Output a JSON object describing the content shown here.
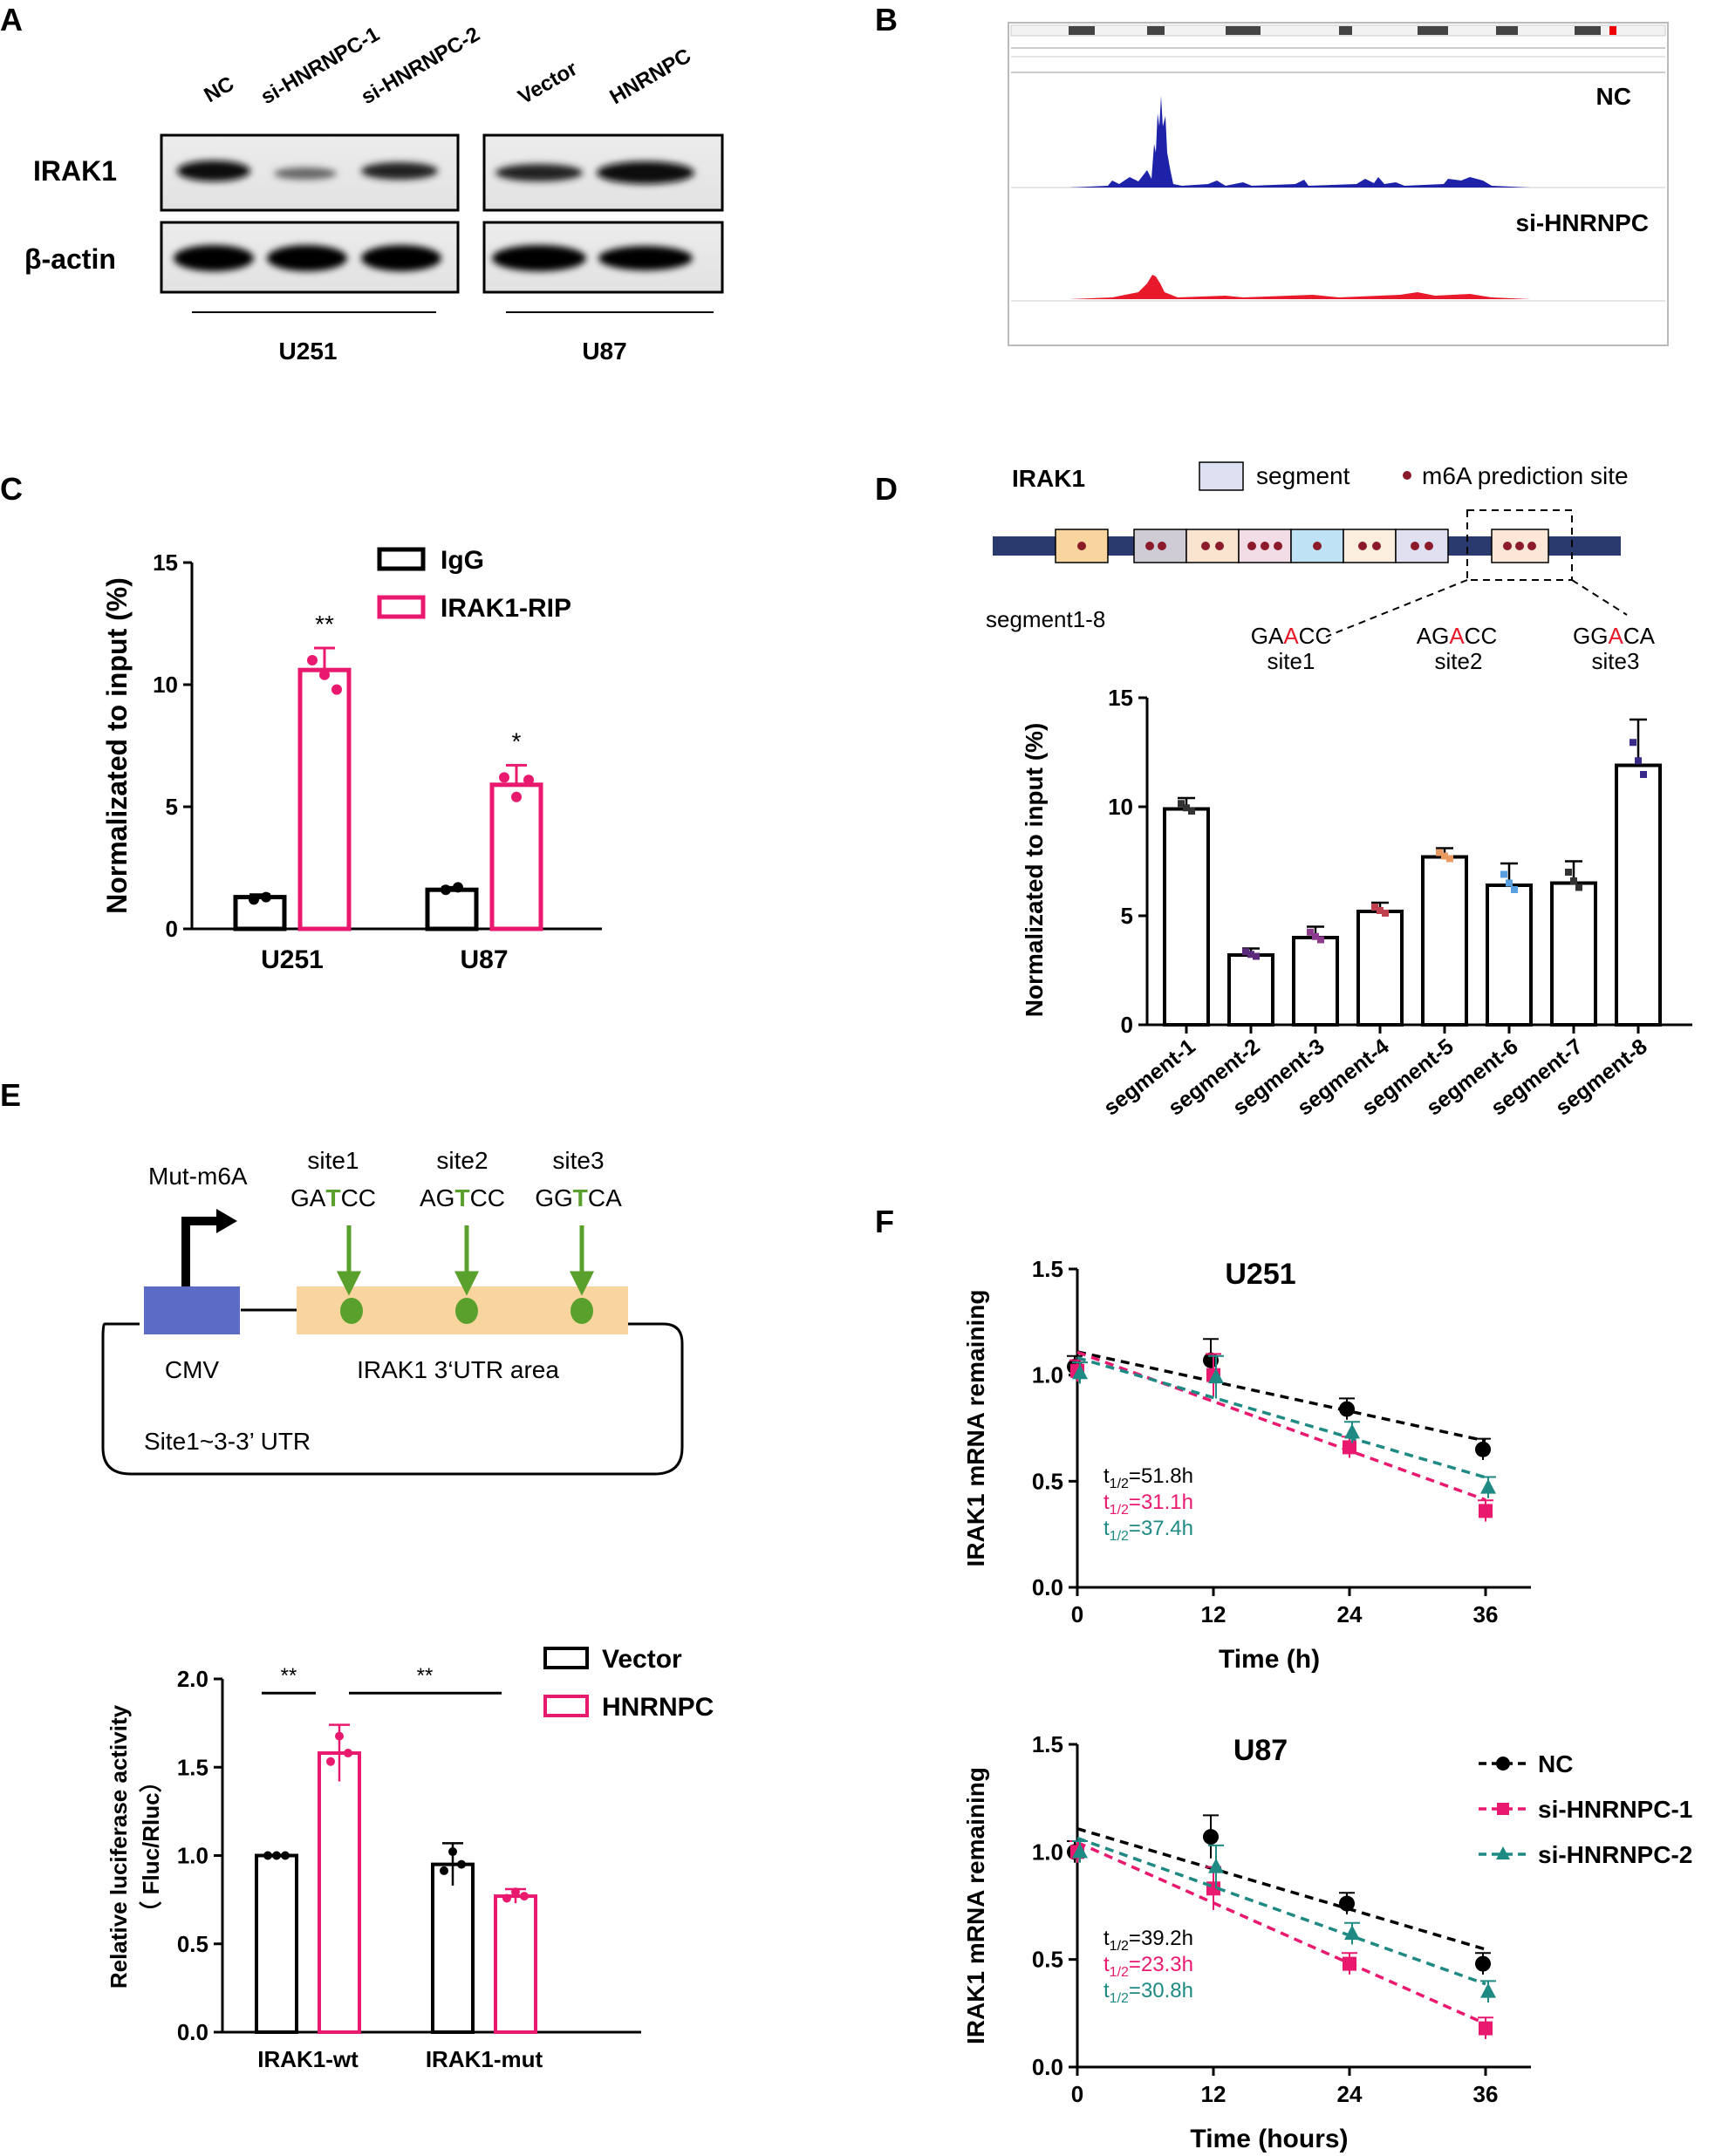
{
  "panels": {
    "A": "A",
    "B": "B",
    "C": "C",
    "D": "D",
    "E": "E",
    "F": "F"
  },
  "panelA": {
    "lanes_left": [
      "NC",
      "si-HNRNPC-1",
      "si-HNRNPC-2"
    ],
    "lanes_right": [
      "Vector",
      "HNRNPC"
    ],
    "rows": [
      "IRAK1",
      "β-actin"
    ],
    "cells": [
      "U251",
      "U87"
    ]
  },
  "panelB": {
    "tracks": [
      "NC",
      "si-HNRNPC"
    ]
  },
  "panelD_schematic": {
    "gene": "IRAK1",
    "legend_segment": "segment",
    "legend_site": "m6A prediction site",
    "segments_label": "segment1-8",
    "sites": [
      {
        "pre": "GA",
        "mid": "A",
        "post": "CC",
        "name": "site1"
      },
      {
        "pre": "AG",
        "mid": "A",
        "post": "CC",
        "name": "site2"
      },
      {
        "pre": "GG",
        "mid": "A",
        "post": "CA",
        "name": "site3"
      }
    ]
  },
  "panelE_schematic": {
    "mut_label": "Mut-m6A",
    "sites": [
      {
        "name": "site1",
        "pre": "GA",
        "mid": "T",
        "post": "CC"
      },
      {
        "name": "site2",
        "pre": "AG",
        "mid": "T",
        "post": "CC"
      },
      {
        "name": "site3",
        "pre": "GG",
        "mid": "T",
        "post": "CA"
      }
    ],
    "promoter": "CMV",
    "utr": "IRAK1 3‘UTR area",
    "construct": "Site1~3-3’ UTR"
  },
  "colors": {
    "pink": "#e8196e",
    "teal": "#1e8a83",
    "black": "#000000",
    "blue_track": "#1d22a8",
    "red_track": "#e8192a",
    "green": "#5aa02c",
    "utr_fill": "#f8d49e",
    "cmv_fill": "#5c6cc4"
  },
  "chart_data": [
    {
      "id": "C",
      "type": "bar",
      "categories": [
        "U251",
        "U87"
      ],
      "series": [
        {
          "name": "IgG",
          "values": [
            1.3,
            1.6
          ],
          "color": "#000000"
        },
        {
          "name": "IRAK1-RIP",
          "values": [
            10.6,
            5.9
          ],
          "color": "#e8196e"
        }
      ],
      "errors": [
        [
          0.1,
          0.1
        ],
        [
          0.9,
          0.8
        ]
      ],
      "points": [
        [
          [
            1.2,
            1.3
          ],
          [
            1.6,
            1.7
          ]
        ],
        [
          [
            11.0,
            10.4,
            9.8
          ],
          [
            6.2,
            5.4,
            6.1
          ]
        ]
      ],
      "sig": [
        "**",
        "*"
      ],
      "ylabel": "Normalizated to input (%)",
      "ylim": [
        0,
        15
      ],
      "yticks": [
        "0",
        "5",
        "10",
        "15"
      ]
    },
    {
      "id": "D",
      "type": "bar",
      "categories": [
        "segment-1",
        "segment-2",
        "segment-3",
        "segment-4",
        "segment-5",
        "segment-6",
        "segment-7",
        "segment-8"
      ],
      "values": [
        9.9,
        3.2,
        4.0,
        5.2,
        7.7,
        6.4,
        6.5,
        11.9
      ],
      "errors": [
        0.5,
        0.3,
        0.5,
        0.4,
        0.4,
        1.0,
        1.0,
        2.1
      ],
      "point_colors": [
        "#333333",
        "#5b2a7a",
        "#8e3a8e",
        "#c04050",
        "#e89a60",
        "#5aa0e0",
        "#333333",
        "#3a2a8a"
      ],
      "ylabel": "Normalizated to input (%)",
      "ylim": [
        0,
        15
      ],
      "yticks": [
        "0",
        "5",
        "10",
        "15"
      ]
    },
    {
      "id": "E",
      "type": "bar",
      "categories": [
        "IRAK1-wt",
        "IRAK1-mut"
      ],
      "series": [
        {
          "name": "Vector",
          "values": [
            1.0,
            0.95
          ],
          "color": "#000000"
        },
        {
          "name": "HNRNPC",
          "values": [
            1.58,
            0.77
          ],
          "color": "#e8196e"
        }
      ],
      "errors": [
        [
          0.0,
          0.12
        ],
        [
          0.16,
          0.04
        ]
      ],
      "sig": [
        "**",
        "**"
      ],
      "ylabel": "Relative luciferase activity",
      "ylabel2": "（ Fluc/Rluc）",
      "ylim": [
        0,
        2
      ],
      "yticks": [
        "0.0",
        "0.5",
        "1.0",
        "1.5",
        "2.0"
      ]
    },
    {
      "id": "F1",
      "type": "line",
      "title": "U251",
      "x": [
        0,
        12,
        24,
        36
      ],
      "series": [
        {
          "name": "NC",
          "values": [
            1.04,
            1.07,
            0.84,
            0.65
          ],
          "color": "#000000",
          "marker": "circle"
        },
        {
          "name": "si-HNRNPC-1",
          "values": [
            1.02,
            1.0,
            0.66,
            0.36
          ],
          "color": "#e8196e",
          "marker": "square"
        },
        {
          "name": "si-HNRNPC-2",
          "values": [
            1.01,
            0.99,
            0.73,
            0.47
          ],
          "color": "#1e8a83",
          "marker": "triangle"
        }
      ],
      "halflife": [
        "51.8h",
        "31.1h",
        "37.4h"
      ],
      "xlabel": "Time (h)",
      "ylabel": "IRAK1 mRNA remaining",
      "ylim": [
        0,
        1.5
      ],
      "xticks": [
        "0",
        "12",
        "24",
        "36"
      ],
      "yticks": [
        "0.0",
        "0.5",
        "1.0",
        "1.5"
      ]
    },
    {
      "id": "F2",
      "type": "line",
      "title": "U87",
      "x": [
        0,
        12,
        24,
        36
      ],
      "series": [
        {
          "name": "NC",
          "values": [
            1.0,
            1.07,
            0.76,
            0.48
          ],
          "color": "#000000",
          "marker": "circle"
        },
        {
          "name": "si-HNRNPC-1",
          "values": [
            1.0,
            0.83,
            0.48,
            0.18
          ],
          "color": "#e8196e",
          "marker": "square"
        },
        {
          "name": "si-HNRNPC-2",
          "values": [
            1.0,
            0.93,
            0.62,
            0.35
          ],
          "color": "#1e8a83",
          "marker": "triangle"
        }
      ],
      "halflife": [
        "39.2h",
        "23.3h",
        "30.8h"
      ],
      "xlabel": "Time (hours)",
      "ylabel": "IRAK1 mRNA remaining",
      "ylim": [
        0,
        1.5
      ],
      "xticks": [
        "0",
        "12",
        "24",
        "36"
      ],
      "yticks": [
        "0.0",
        "0.5",
        "1.0",
        "1.5"
      ]
    }
  ],
  "halflife_prefix": "t",
  "halflife_sub": "1/2",
  "halflife_eq": "="
}
